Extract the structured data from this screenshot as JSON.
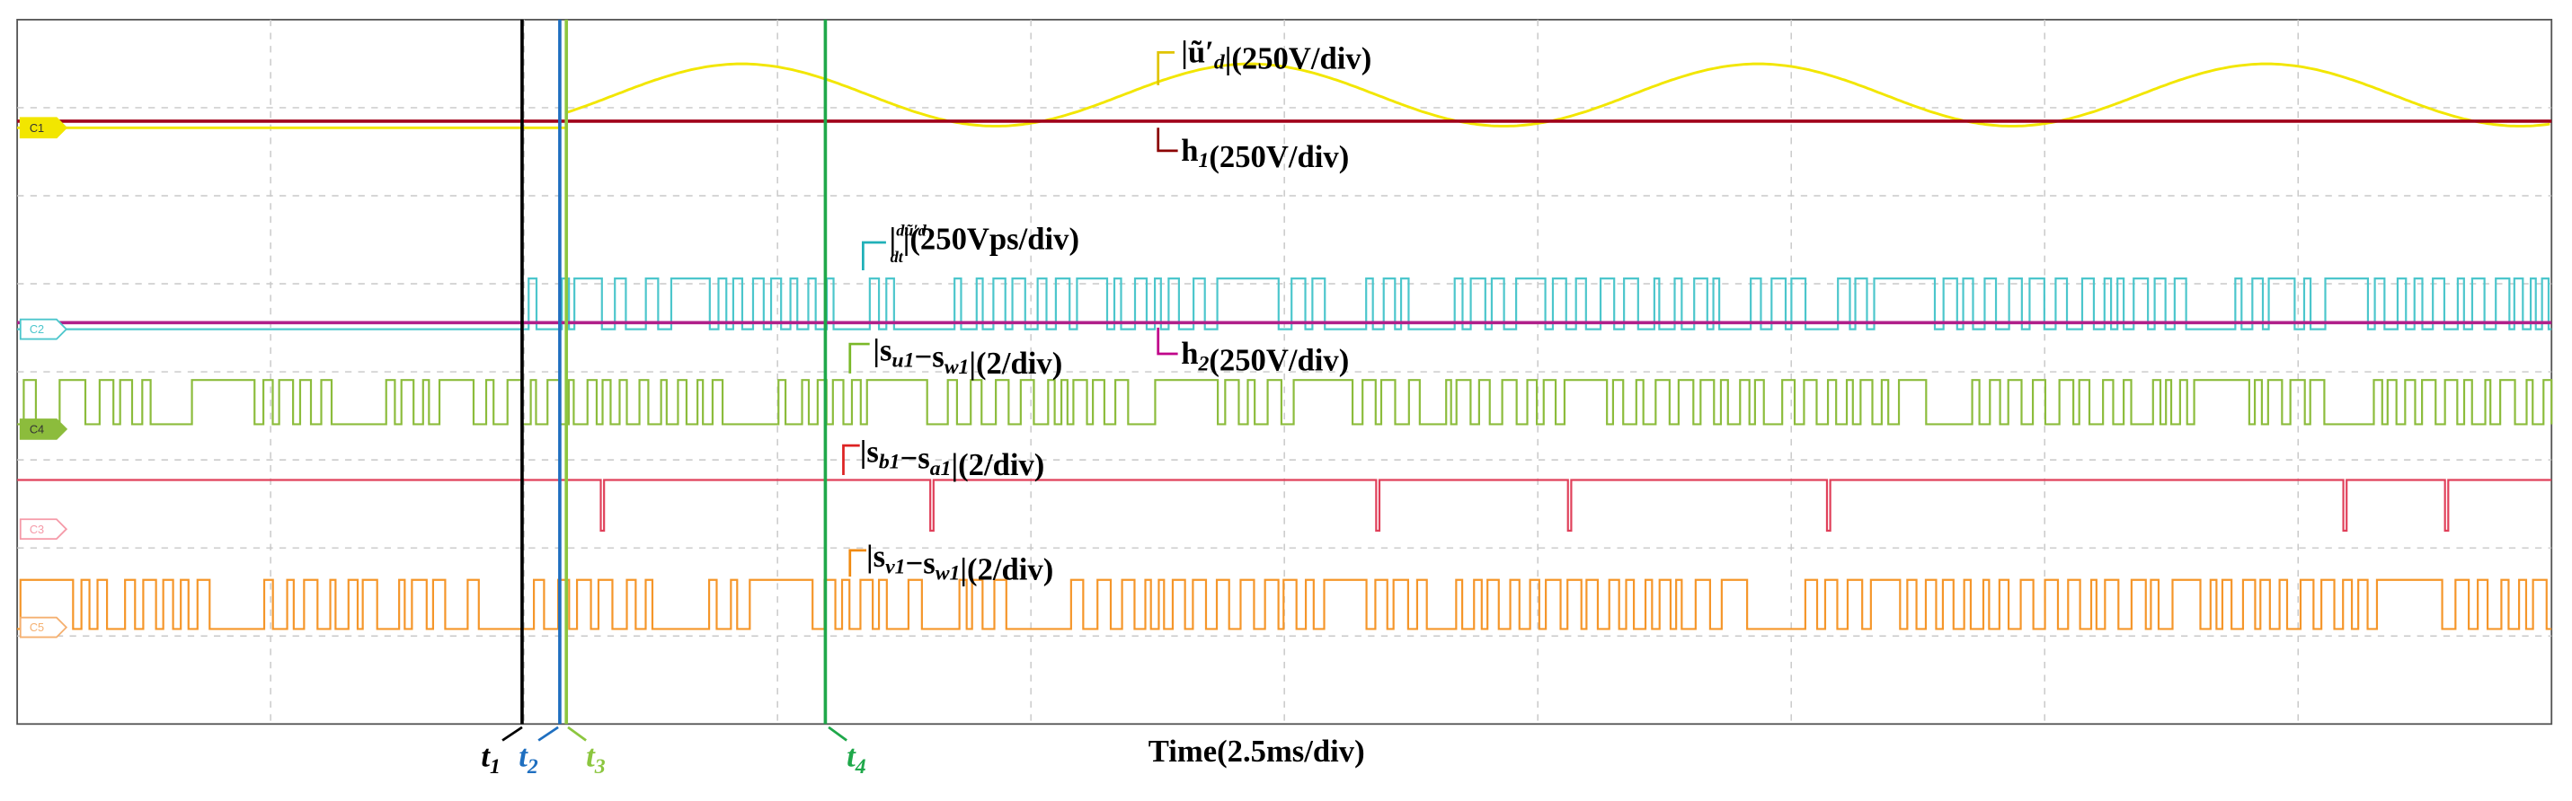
{
  "channels": [
    "C1",
    "C2",
    "C4",
    "C3",
    "C5"
  ],
  "labels": [
    {
      "parts": [
        {
          "text": "|ũ′"
        },
        {
          "sub": "d"
        },
        {
          "text": "|(250V/div)"
        }
      ]
    },
    {
      "parts": [
        {
          "text": "h"
        },
        {
          "sub": "1"
        },
        {
          "text": "(250V/div)"
        }
      ]
    },
    {
      "parts": [
        {
          "text": "|"
        },
        {
          "num": "dũ′d"
        },
        {
          "den": "dt"
        },
        {
          "text": "|(250Vps/div)"
        }
      ]
    },
    {
      "parts": [
        {
          "text": "h"
        },
        {
          "sub": "2"
        },
        {
          "text": "(250V/div)"
        }
      ]
    },
    {
      "parts": [
        {
          "text": "|s"
        },
        {
          "sub": "u1"
        },
        {
          "text": "−s"
        },
        {
          "sub": "w1"
        },
        {
          "text": "|(2/div)"
        }
      ]
    },
    {
      "parts": [
        {
          "text": "|s"
        },
        {
          "sub": "b1"
        },
        {
          "text": "−s"
        },
        {
          "sub": "a1"
        },
        {
          "text": "|(2/div)"
        }
      ]
    },
    {
      "parts": [
        {
          "text": "|s"
        },
        {
          "sub": "v1"
        },
        {
          "text": "−s"
        },
        {
          "sub": "w1"
        },
        {
          "text": "|(2/div)"
        }
      ]
    }
  ],
  "time_label": "Time(2.5ms/div)",
  "markers": [
    {
      "parts": [
        {
          "text": "t"
        },
        {
          "sub": "1"
        }
      ]
    },
    {
      "parts": [
        {
          "text": "t"
        },
        {
          "sub": "2"
        }
      ]
    },
    {
      "parts": [
        {
          "text": "t"
        },
        {
          "sub": "3"
        }
      ]
    },
    {
      "parts": [
        {
          "text": "t"
        },
        {
          "sub": "4"
        }
      ]
    }
  ]
}
